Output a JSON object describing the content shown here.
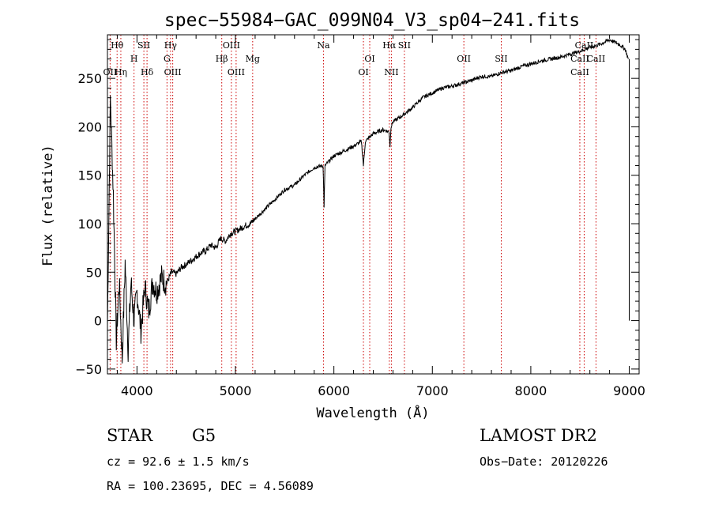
{
  "chart_data": {
    "type": "line",
    "title": "spec−55984−GAC_099N04_V3_sp04−241.fits",
    "xlabel": "Wavelength (Å)",
    "ylabel": "Flux (relative)",
    "xlim": [
      3700,
      9100
    ],
    "ylim": [
      -55,
      295
    ],
    "xticks": [
      4000,
      5000,
      6000,
      7000,
      8000,
      9000
    ],
    "xtick_labels": [
      "4000",
      "5000",
      "6000",
      "7000",
      "8000",
      "9000"
    ],
    "yticks": [
      -50,
      0,
      50,
      100,
      150,
      200,
      250
    ],
    "ytick_labels": [
      "−50",
      "0",
      "50",
      "100",
      "150",
      "200",
      "250"
    ],
    "grid": false,
    "series": [
      {
        "x": [
          3700,
          3730,
          3760,
          3790,
          3820,
          3850,
          3880,
          3910,
          3940,
          3970,
          4000,
          4040,
          4080,
          4120,
          4160,
          4200,
          4250,
          4300,
          4350,
          4400,
          4450,
          4500,
          4550,
          4600,
          4650,
          4700,
          4750,
          4800,
          4850,
          4900,
          4950,
          5000,
          5050,
          5100,
          5150,
          5200,
          5300,
          5400,
          5500,
          5600,
          5700,
          5800,
          5890,
          5900,
          5910,
          6000,
          6100,
          6200,
          6280,
          6300,
          6320,
          6400,
          6500,
          6560,
          6570,
          6580,
          6600,
          6700,
          6800,
          6900,
          7000,
          7100,
          7200,
          7300,
          7400,
          7500,
          7600,
          7700,
          7800,
          7900,
          8000,
          8100,
          8200,
          8300,
          8400,
          8500,
          8600,
          8700,
          8800,
          8900,
          8960,
          8990
        ],
        "y": [
          -5,
          230,
          130,
          -20,
          40,
          -40,
          60,
          -30,
          40,
          0,
          30,
          -10,
          35,
          10,
          40,
          30,
          45,
          38,
          50,
          48,
          55,
          58,
          62,
          66,
          70,
          72,
          78,
          75,
          85,
          82,
          90,
          92,
          95,
          98,
          100,
          105,
          115,
          125,
          135,
          140,
          150,
          158,
          160,
          118,
          160,
          170,
          175,
          180,
          185,
          160,
          185,
          193,
          197,
          195,
          180,
          200,
          205,
          212,
          220,
          230,
          235,
          240,
          242,
          245,
          248,
          252,
          252,
          256,
          258,
          262,
          265,
          268,
          270,
          272,
          275,
          278,
          282,
          285,
          290,
          285,
          280,
          270
        ]
      }
    ],
    "lines": [
      {
        "label": "Hθ",
        "x": 3798,
        "row": 1
      },
      {
        "label": "OII",
        "x": 3727,
        "row": 4
      },
      {
        "label": "Hη",
        "x": 3836,
        "row": 4
      },
      {
        "label": "H",
        "x": 3970,
        "row": 2
      },
      {
        "label": "SII",
        "x": 4070,
        "row": 1
      },
      {
        "label": "Hδ",
        "x": 4102,
        "row": 4
      },
      {
        "label": "Hγ",
        "x": 4341,
        "row": 1
      },
      {
        "label": "G",
        "x": 4305,
        "row": 2
      },
      {
        "label": "OIII",
        "x": 4363,
        "row": 4
      },
      {
        "label": "OIII",
        "x": 4959,
        "row": 1
      },
      {
        "label": "Hβ",
        "x": 4861,
        "row": 2
      },
      {
        "label": "OIII",
        "x": 5007,
        "row": 4
      },
      {
        "label": "Mg",
        "x": 5175,
        "row": 2
      },
      {
        "label": "Na",
        "x": 5894,
        "row": 1
      },
      {
        "label": "OI",
        "x": 6364,
        "row": 2
      },
      {
        "label": "OI",
        "x": 6300,
        "row": 4
      },
      {
        "label": "Hα",
        "x": 6563,
        "row": 1
      },
      {
        "label": "SII",
        "x": 6716,
        "row": 1
      },
      {
        "label": "NII",
        "x": 6584,
        "row": 4
      },
      {
        "label": "OII",
        "x": 7320,
        "row": 2
      },
      {
        "label": "SII",
        "x": 7700,
        "row": 2
      },
      {
        "label": "CaII",
        "x": 8542,
        "row": 1
      },
      {
        "label": "CaII",
        "x": 8498,
        "row": 2
      },
      {
        "label": "CaII",
        "x": 8662,
        "row": 2
      },
      {
        "label": "CaII",
        "x": 8498,
        "row": 4
      }
    ]
  },
  "footer": {
    "object_class": "STAR",
    "subclass": "G5",
    "survey": "LAMOST DR2",
    "cz_text": "cz = 92.6 ± 1.5 km/s",
    "obs_date_text": "Obs−Date: 20120226",
    "radec_text": "RA = 100.23695, DEC =   4.56089"
  },
  "colors": {
    "spectrum": "#000000",
    "line_markers": "#cc0000",
    "axes": "#000000"
  }
}
